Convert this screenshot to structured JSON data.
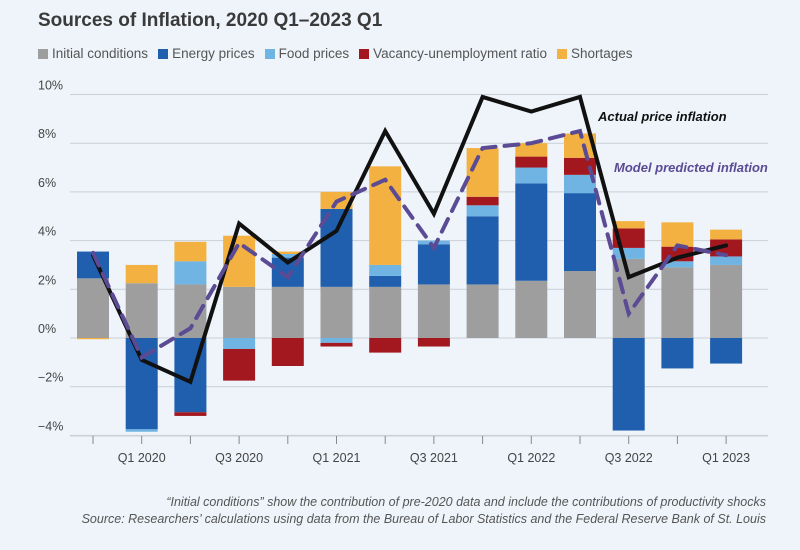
{
  "title": "Sources of Inflation, 2020 Q1–2023 Q1",
  "legend": [
    {
      "label": "Initial conditions",
      "color": "#9e9e9e"
    },
    {
      "label": "Energy prices",
      "color": "#1f5fae"
    },
    {
      "label": "Food prices",
      "color": "#6fb4e3"
    },
    {
      "label": "Vacancy-unemployment ratio",
      "color": "#a3171f"
    },
    {
      "label": "Shortages",
      "color": "#f2b140"
    }
  ],
  "footer": {
    "note": "“Initial conditions” show the contribution of pre-2020 data and include the contributions of productivity shocks",
    "source": "Source: Researchers’ calculations using data from the Bureau of Labor Statistics and the Federal Reserve Bank of St. Louis"
  },
  "chart_data": {
    "type": "bar",
    "stacked": true,
    "title": "Sources of Inflation, 2020 Q1–2023 Q1",
    "categories": [
      "2019 Q4",
      "2020 Q1",
      "2020 Q2",
      "2020 Q3",
      "2020 Q4",
      "2021 Q1",
      "2021 Q2",
      "2021 Q3",
      "2021 Q4",
      "2022 Q1",
      "2022 Q2",
      "2022 Q3",
      "2022 Q4",
      "2023 Q1"
    ],
    "tick_labels": [
      "Q1 2020",
      "Q3 2020",
      "Q1 2021",
      "Q3 2021",
      "Q1 2022",
      "Q3 2022",
      "Q1 2023"
    ],
    "ylim": [
      -4,
      10
    ],
    "yticks": [
      -4,
      -2,
      0,
      2,
      4,
      6,
      8,
      10
    ],
    "ytick_labels": [
      "−4%",
      "−2%",
      "0%",
      "2%",
      "4%",
      "6%",
      "8%",
      "10%"
    ],
    "series": [
      {
        "name": "Initial conditions",
        "color": "#9e9e9e",
        "values": [
          2.45,
          2.25,
          2.2,
          2.1,
          2.1,
          2.1,
          2.1,
          2.2,
          2.2,
          2.35,
          2.75,
          3.25,
          2.9,
          3.0
        ]
      },
      {
        "name": "Energy prices",
        "color": "#1f5fae",
        "values": [
          1.1,
          -3.75,
          -3.05,
          0,
          1.2,
          3.2,
          0.45,
          1.65,
          2.8,
          4.0,
          3.2,
          -3.8,
          -1.25,
          -1.05
        ]
      },
      {
        "name": "Food prices",
        "color": "#6fb4e3",
        "values": [
          0,
          -0.1,
          0.95,
          -0.45,
          0.15,
          -0.2,
          0.45,
          0.15,
          0.45,
          0.65,
          0.75,
          0.45,
          0.25,
          0.35
        ]
      },
      {
        "name": "Vacancy-unemployment ratio",
        "color": "#a3171f",
        "values": [
          0,
          0,
          -0.15,
          -1.3,
          -1.15,
          -0.15,
          -0.6,
          -0.35,
          0.35,
          0.45,
          0.7,
          0.8,
          0.6,
          0.7
        ]
      },
      {
        "name": "Shortages",
        "color": "#f2b140",
        "values": [
          -0.05,
          0.75,
          0.8,
          2.1,
          0.1,
          0.7,
          4.05,
          0,
          2.0,
          0.55,
          1.0,
          0.3,
          1.0,
          0.4
        ]
      }
    ],
    "lines": [
      {
        "name": "Actual price inflation",
        "color": "#111111",
        "style": "solid",
        "values": [
          3.4,
          -0.9,
          -1.8,
          4.7,
          3.1,
          4.4,
          8.5,
          5.1,
          9.9,
          9.3,
          9.9,
          2.5,
          3.3,
          3.8
        ]
      },
      {
        "name": "Model predicted inflation",
        "color": "#5b4a94",
        "style": "dashed",
        "values": [
          3.5,
          -0.8,
          0.4,
          3.9,
          2.5,
          5.6,
          6.5,
          3.7,
          7.8,
          8.0,
          8.5,
          1.0,
          3.8,
          3.4
        ]
      }
    ],
    "annotations": [
      {
        "text": "Actual price inflation",
        "color": "#111111"
      },
      {
        "text": "Model predicted inflation",
        "color": "#5b4a94"
      }
    ],
    "grid": true,
    "legend_position": "top"
  }
}
